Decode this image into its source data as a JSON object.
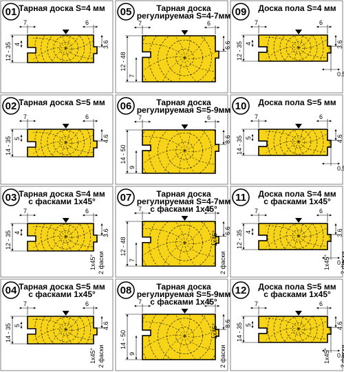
{
  "colors": {
    "wood": "#f7d417",
    "outline": "#000000",
    "panel_border": "#808080",
    "grain": "#000000"
  },
  "panels": [
    {
      "id": "01",
      "title": [
        "Тарная доска S=4 мм"
      ],
      "dims": {
        "top_left": "7",
        "top_right": "6",
        "right_upper": "3.6",
        "left_mid": "4",
        "left_range": "12 - 35"
      }
    },
    {
      "id": "05",
      "title": [
        "Тарная доска",
        "регулируемая S=4-7мм"
      ],
      "dims": {
        "top_left": "7",
        "top_right": "6",
        "right_upper": "6.6",
        "left_range": "12 - 48",
        "left_lower": "7"
      }
    },
    {
      "id": "09",
      "title": [
        "Доска пола S=4 мм"
      ],
      "dims": {
        "top_left": "7",
        "top_right": "6",
        "right_upper": "3.6",
        "left_mid": "4",
        "left_range": "12 - 35",
        "bottom_right": "0.5"
      }
    },
    {
      "id": "02",
      "title": [
        "Тарная доска S=5 мм"
      ],
      "dims": {
        "top_left": "7",
        "top_right": "6",
        "right_upper": "4.6",
        "left_mid": "5",
        "left_range": "14 - 35"
      }
    },
    {
      "id": "06",
      "title": [
        "Тарная доска",
        "регулируемая S=5-9мм"
      ],
      "dims": {
        "top_left": "7",
        "top_right": "6",
        "right_upper": "8.6",
        "left_range": "14 - 50",
        "left_lower": "9"
      }
    },
    {
      "id": "10",
      "title": [
        "Доска пола S=5 мм"
      ],
      "dims": {
        "top_left": "7",
        "top_right": "6",
        "right_upper": "4.6",
        "left_mid": "5",
        "left_range": "14 - 35",
        "bottom_right": "0.5"
      }
    },
    {
      "id": "03",
      "title": [
        "Тарная доска S=4 мм",
        "с фасками 1x45°"
      ],
      "dims": {
        "top_left": "7",
        "top_right": "6",
        "right_upper": "3.6",
        "left_mid": "4",
        "left_range": "12 - 35",
        "bottom_chamfer": "1x45°",
        "right_chamfer": "2 фаски"
      }
    },
    {
      "id": "07",
      "title": [
        "Тарная доска",
        "регулируемая S=4-7мм",
        "с фасками 1x45°"
      ],
      "dims": {
        "top_left": "7",
        "top_right": "6",
        "right_upper": "6.6",
        "left_range": "12 - 48",
        "left_lower": "7",
        "top_chamfer": "1x45°",
        "right_chamfer": "2 фаски"
      }
    },
    {
      "id": "11",
      "title": [
        "Доска пола S=4 мм",
        "с фасками 1x45°"
      ],
      "dims": {
        "top_left": "7",
        "top_right": "6",
        "right_upper": "3.6",
        "left_mid": "4",
        "left_range": "12 - 35",
        "bottom_right": "0.5",
        "bottom_chamfer": "1x45°",
        "right_chamfer": "2 фаски"
      }
    },
    {
      "id": "04",
      "title": [
        "Тарная доска S=5 мм",
        "с фасками 1x45°"
      ],
      "dims": {
        "top_left": "7",
        "top_right": "6",
        "right_upper": "4.6",
        "left_mid": "5",
        "left_range": "14 - 35",
        "bottom_chamfer": "1x45°",
        "right_chamfer": "2 фаски"
      }
    },
    {
      "id": "08",
      "title": [
        "Тарная доска",
        "регулируемая S=5-9мм",
        "с фасками 1x45°"
      ],
      "dims": {
        "top_left": "7",
        "top_right": "6",
        "right_upper": "8.6",
        "left_range": "14 - 50",
        "left_lower": "9",
        "top_chamfer": "1x45°",
        "right_chamfer": "2 фаски"
      }
    },
    {
      "id": "12",
      "title": [
        "Доска пола S=5 мм",
        "с фасками 1x45°"
      ],
      "dims": {
        "top_left": "7",
        "top_right": "6",
        "right_upper": "4.6",
        "left_mid": "5",
        "left_range": "14 - 35",
        "bottom_right": "0.5",
        "bottom_chamfer": "1x45°",
        "right_chamfer": "2 фаски"
      }
    }
  ]
}
